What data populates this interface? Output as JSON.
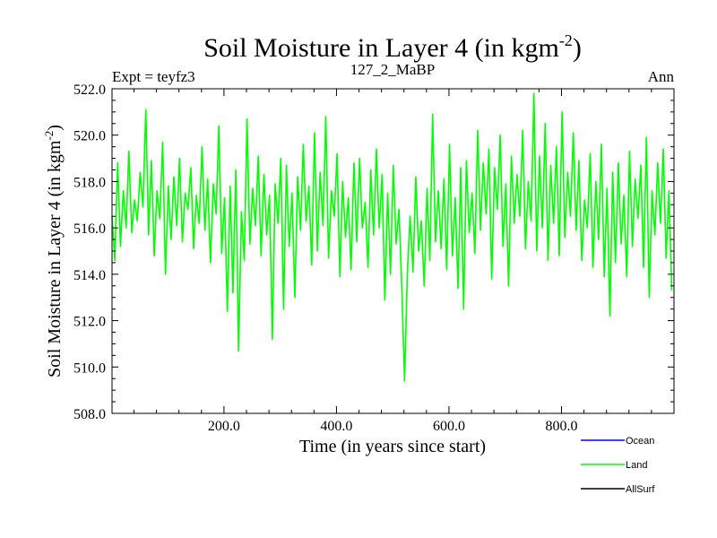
{
  "header": {
    "title_main": "Soil Moisture in Layer 4 (in kgm",
    "title_sup": "-2",
    "title_close": ")",
    "left_label": "Expt = teyfz3",
    "center_label": "127_2_MaBP",
    "right_label": "Ann"
  },
  "colors": {
    "ocean": "#0000ff",
    "land": "#00ff00",
    "allsurf": "#000000",
    "axis": "#000000"
  },
  "chart_data": {
    "type": "line",
    "title": "Soil Moisture in Layer 4 (in kgm-2)",
    "xlabel": "Time (in years since start)",
    "ylabel": "Soil Moisture in Layer 4 (in kgm-2)",
    "xlim": [
      1,
      1000
    ],
    "ylim": [
      508.0,
      522.0
    ],
    "x_ticks": [
      200,
      400,
      600,
      800
    ],
    "x_tick_labels": [
      "200.0",
      "400.0",
      "600.0",
      "800.0"
    ],
    "y_ticks": [
      508,
      510,
      512,
      514,
      516,
      518,
      520,
      522
    ],
    "y_tick_labels": [
      "508.0",
      "510.0",
      "512.0",
      "514.0",
      "516.0",
      "518.0",
      "520.0",
      "522.0"
    ],
    "legend": [
      "Ocean",
      "Land",
      "AllSurf"
    ],
    "series": [
      {
        "name": "Land",
        "color": "#00ff00",
        "x_start": 1,
        "x_step": 5,
        "values": [
          516.5,
          514.6,
          518.8,
          515.2,
          517.6,
          516.0,
          519.3,
          515.8,
          517.2,
          516.3,
          518.4,
          516.9,
          521.1,
          515.7,
          518.9,
          514.8,
          517.6,
          516.4,
          519.7,
          514.0,
          517.8,
          515.5,
          518.2,
          516.1,
          519.0,
          515.4,
          517.5,
          516.8,
          518.6,
          515.1,
          517.4,
          516.2,
          519.5,
          515.9,
          518.1,
          514.5,
          517.9,
          516.6,
          520.4,
          514.9,
          517.3,
          512.4,
          517.8,
          513.2,
          518.5,
          510.7,
          516.7,
          514.6,
          520.7,
          515.3,
          517.7,
          516.1,
          519.1,
          514.8,
          518.3,
          515.7,
          517.4,
          511.2,
          517.9,
          516.2,
          519.0,
          512.5,
          518.7,
          515.2,
          517.5,
          513.0,
          518.2,
          515.9,
          519.6,
          516.3,
          517.8,
          514.4,
          520.1,
          515.0,
          518.4,
          516.1,
          520.8,
          514.7,
          517.6,
          516.5,
          519.2,
          513.9,
          518.0,
          515.6,
          517.3,
          514.2,
          518.8,
          515.4,
          519.0,
          516.0,
          517.1,
          514.3,
          518.5,
          515.7,
          519.4,
          516.0,
          518.3,
          512.9,
          517.5,
          514.0,
          518.7,
          515.3,
          516.8,
          513.6,
          509.4,
          514.0,
          516.5,
          514.1,
          518.2,
          515.0,
          516.3,
          513.5,
          517.7,
          514.6,
          520.9,
          515.4,
          517.6,
          515.1,
          518.1,
          514.2,
          519.6,
          514.8,
          517.3,
          513.4,
          518.6,
          512.5,
          518.9,
          515.8,
          517.5,
          514.9,
          520.2,
          515.9,
          518.8,
          516.6,
          519.4,
          513.8,
          518.6,
          516.8,
          520.0,
          515.2,
          517.9,
          513.5,
          519.1,
          516.2,
          518.3,
          516.5,
          520.2,
          515.1,
          518.0,
          516.3,
          521.8,
          515.0,
          519.1,
          516.0,
          520.5,
          514.6,
          518.7,
          516.2,
          519.5,
          514.8,
          521.0,
          515.6,
          518.4,
          516.5,
          520.1,
          515.9,
          518.9,
          514.6,
          517.2,
          516.0,
          519.2,
          514.3,
          518.0,
          515.5,
          519.6,
          513.9,
          517.7,
          512.2,
          518.4,
          514.5,
          518.8,
          515.3,
          517.4,
          513.9,
          519.3,
          515.2,
          518.1,
          516.4,
          518.7,
          514.3,
          519.9,
          513.0,
          517.6,
          515.7,
          518.8,
          516.2,
          519.4,
          514.7,
          517.6,
          513.3
        ]
      }
    ]
  }
}
